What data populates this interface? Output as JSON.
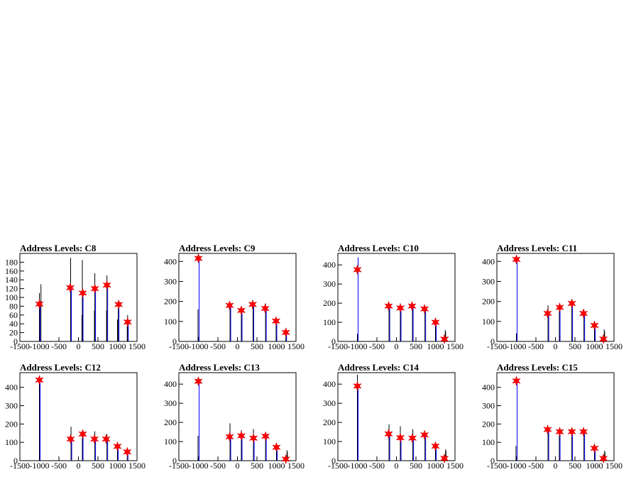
{
  "chart_data": [
    {
      "type": "line",
      "title": "Address Levels: C8",
      "xlim": [
        -1500,
        1500
      ],
      "ylim": [
        0,
        200
      ],
      "xticks": [
        "-1500",
        "-1000",
        "-500",
        "0",
        "500",
        "1000",
        "1500"
      ],
      "yticks": [
        [
          "0",
          "0"
        ],
        [
          "20",
          "20"
        ],
        [
          "40",
          "40"
        ],
        [
          "60",
          "60"
        ],
        [
          "80",
          "80"
        ],
        [
          "100",
          "100"
        ],
        [
          "120",
          "120"
        ],
        [
          "140",
          "140"
        ],
        [
          "160",
          "160"
        ],
        [
          "180",
          "180"
        ]
      ],
      "black_spikes": [
        [
          -1000,
          110
        ],
        [
          -960,
          130
        ],
        [
          -200,
          190
        ],
        [
          -190,
          70
        ],
        [
          100,
          185
        ],
        [
          90,
          60
        ],
        [
          420,
          155
        ],
        [
          410,
          70
        ],
        [
          730,
          150
        ],
        [
          720,
          70
        ],
        [
          1020,
          75
        ],
        [
          1000,
          50
        ],
        [
          1260,
          60
        ],
        [
          1250,
          35
        ]
      ],
      "blue_spikes": [
        [
          -1000,
          80
        ],
        [
          -200,
          120
        ],
        [
          100,
          105
        ],
        [
          420,
          115
        ],
        [
          730,
          125
        ],
        [
          1020,
          80
        ],
        [
          1260,
          40
        ]
      ],
      "peaks": [
        [
          -1000,
          85
        ],
        [
          -210,
          122
        ],
        [
          110,
          110
        ],
        [
          420,
          120
        ],
        [
          730,
          128
        ],
        [
          1030,
          84
        ],
        [
          1260,
          44
        ]
      ]
    },
    {
      "type": "line",
      "title": "Address Levels: C9",
      "xlim": [
        -1500,
        1500
      ],
      "ylim": [
        0,
        440
      ],
      "xticks": [
        "-1500",
        "-1000",
        "-500",
        "0",
        "500",
        "1000",
        "1500"
      ],
      "yticks": [
        [
          "0",
          "0"
        ],
        [
          "100",
          "100"
        ],
        [
          "200",
          "200"
        ],
        [
          "300",
          "300"
        ],
        [
          "400",
          "400"
        ]
      ],
      "black_spikes": [
        [
          -1010,
          160
        ],
        [
          -190,
          190
        ],
        [
          100,
          170
        ],
        [
          400,
          185
        ],
        [
          720,
          190
        ],
        [
          990,
          100
        ],
        [
          1240,
          50
        ],
        [
          1250,
          40
        ]
      ],
      "blue_spikes": [
        [
          -1000,
          420
        ],
        [
          -190,
          175
        ],
        [
          100,
          155
        ],
        [
          400,
          185
        ],
        [
          720,
          160
        ],
        [
          990,
          105
        ],
        [
          1240,
          45
        ]
      ],
      "peaks": [
        [
          -1000,
          415
        ],
        [
          -200,
          180
        ],
        [
          100,
          155
        ],
        [
          390,
          185
        ],
        [
          710,
          165
        ],
        [
          990,
          102
        ],
        [
          1240,
          45
        ]
      ]
    },
    {
      "type": "line",
      "title": "Address Levels: C10",
      "xlim": [
        -1500,
        1500
      ],
      "ylim": [
        0,
        460
      ],
      "xticks": [
        "-1500",
        "-1000",
        "-500",
        "0",
        "500",
        "1000",
        "1500"
      ],
      "yticks": [
        [
          "0",
          "0"
        ],
        [
          "100",
          "100"
        ],
        [
          "200",
          "200"
        ],
        [
          "300",
          "300"
        ],
        [
          "400",
          "400"
        ]
      ],
      "black_spikes": [
        [
          -1000,
          40
        ],
        [
          -190,
          200
        ],
        [
          100,
          190
        ],
        [
          410,
          195
        ],
        [
          730,
          180
        ],
        [
          1000,
          110
        ],
        [
          1250,
          60
        ],
        [
          1260,
          50
        ]
      ],
      "blue_spikes": [
        [
          -1000,
          440
        ],
        [
          -190,
          185
        ],
        [
          100,
          175
        ],
        [
          410,
          180
        ],
        [
          730,
          170
        ],
        [
          1000,
          100
        ],
        [
          1230,
          15
        ]
      ],
      "peaks": [
        [
          -1000,
          375
        ],
        [
          -200,
          185
        ],
        [
          100,
          175
        ],
        [
          400,
          185
        ],
        [
          720,
          170
        ],
        [
          1000,
          100
        ],
        [
          1230,
          12
        ]
      ]
    },
    {
      "type": "line",
      "title": "Address Levels: C11",
      "xlim": [
        -1500,
        1500
      ],
      "ylim": [
        0,
        440
      ],
      "xticks": [
        "-1500",
        "-1000",
        "-500",
        "0",
        "500",
        "1000",
        "1500"
      ],
      "yticks": [
        [
          "0",
          "0"
        ],
        [
          "100",
          "100"
        ],
        [
          "200",
          "200"
        ],
        [
          "300",
          "300"
        ],
        [
          "400",
          "400"
        ]
      ],
      "black_spikes": [
        [
          -1000,
          40
        ],
        [
          -190,
          180
        ],
        [
          100,
          180
        ],
        [
          420,
          200
        ],
        [
          730,
          160
        ],
        [
          1000,
          90
        ],
        [
          1250,
          60
        ],
        [
          1260,
          50
        ]
      ],
      "blue_spikes": [
        [
          -1000,
          410
        ],
        [
          -190,
          140
        ],
        [
          100,
          170
        ],
        [
          420,
          190
        ],
        [
          730,
          140
        ],
        [
          1000,
          80
        ],
        [
          1230,
          15
        ]
      ],
      "peaks": [
        [
          -1000,
          410
        ],
        [
          -200,
          140
        ],
        [
          110,
          170
        ],
        [
          420,
          190
        ],
        [
          720,
          140
        ],
        [
          1000,
          80
        ],
        [
          1230,
          12
        ]
      ]
    },
    {
      "type": "line",
      "title": "Address Levels: C12",
      "xlim": [
        -1500,
        1500
      ],
      "ylim": [
        0,
        480
      ],
      "xticks": [
        "-1500",
        "-1000",
        "-500",
        "0",
        "500",
        "1000",
        "1500"
      ],
      "yticks": [
        [
          "0",
          "0"
        ],
        [
          "100",
          "100"
        ],
        [
          "200",
          "200"
        ],
        [
          "300",
          "300"
        ],
        [
          "400",
          "400"
        ]
      ],
      "black_spikes": [
        [
          -1000,
          430
        ],
        [
          -190,
          185
        ],
        [
          100,
          160
        ],
        [
          420,
          160
        ],
        [
          730,
          145
        ],
        [
          1000,
          90
        ],
        [
          1250,
          55
        ]
      ],
      "blue_spikes": [
        [
          -1000,
          445
        ],
        [
          -190,
          120
        ],
        [
          100,
          140
        ],
        [
          420,
          120
        ],
        [
          730,
          120
        ],
        [
          1000,
          75
        ],
        [
          1250,
          45
        ]
      ],
      "peaks": [
        [
          -1000,
          440
        ],
        [
          -200,
          118
        ],
        [
          110,
          145
        ],
        [
          410,
          118
        ],
        [
          710,
          118
        ],
        [
          1000,
          78
        ],
        [
          1250,
          48
        ]
      ]
    },
    {
      "type": "line",
      "title": "Address Levels: C13",
      "xlim": [
        -1500,
        1500
      ],
      "ylim": [
        0,
        460
      ],
      "xticks": [
        "-1500",
        "-1000",
        "-500",
        "0",
        "500",
        "1000",
        "1500"
      ],
      "yticks": [
        [
          "0",
          "0"
        ],
        [
          "100",
          "100"
        ],
        [
          "200",
          "200"
        ],
        [
          "300",
          "300"
        ],
        [
          "400",
          "400"
        ]
      ],
      "black_spikes": [
        [
          -1010,
          130
        ],
        [
          -190,
          195
        ],
        [
          100,
          160
        ],
        [
          410,
          165
        ],
        [
          720,
          140
        ],
        [
          1000,
          80
        ],
        [
          1270,
          55
        ],
        [
          1280,
          45
        ]
      ],
      "blue_spikes": [
        [
          -1000,
          420
        ],
        [
          -190,
          125
        ],
        [
          100,
          130
        ],
        [
          410,
          120
        ],
        [
          720,
          130
        ],
        [
          1000,
          70
        ],
        [
          1240,
          10
        ]
      ],
      "peaks": [
        [
          -1000,
          415
        ],
        [
          -200,
          125
        ],
        [
          100,
          130
        ],
        [
          410,
          118
        ],
        [
          720,
          128
        ],
        [
          1000,
          70
        ],
        [
          1240,
          8
        ]
      ]
    },
    {
      "type": "line",
      "title": "Address Levels: C14",
      "xlim": [
        -1500,
        1500
      ],
      "ylim": [
        0,
        460
      ],
      "xticks": [
        "-1500",
        "-1000",
        "-500",
        "0",
        "500",
        "1000",
        "1500"
      ],
      "yticks": [
        [
          "0",
          "0"
        ],
        [
          "100",
          "100"
        ],
        [
          "200",
          "200"
        ],
        [
          "300",
          "300"
        ],
        [
          "400",
          "400"
        ]
      ],
      "black_spikes": [
        [
          -1000,
          450
        ],
        [
          -190,
          190
        ],
        [
          100,
          180
        ],
        [
          420,
          165
        ],
        [
          730,
          150
        ],
        [
          1000,
          90
        ],
        [
          1260,
          60
        ],
        [
          1270,
          50
        ]
      ],
      "blue_spikes": [
        [
          -1000,
          390
        ],
        [
          -190,
          140
        ],
        [
          100,
          120
        ],
        [
          420,
          125
        ],
        [
          730,
          135
        ],
        [
          1000,
          75
        ],
        [
          1230,
          15
        ]
      ],
      "peaks": [
        [
          -1000,
          390
        ],
        [
          -200,
          140
        ],
        [
          100,
          120
        ],
        [
          410,
          118
        ],
        [
          720,
          135
        ],
        [
          1000,
          76
        ],
        [
          1230,
          12
        ]
      ]
    },
    {
      "type": "line",
      "title": "Address Levels: C15",
      "xlim": [
        -1500,
        1500
      ],
      "ylim": [
        0,
        480
      ],
      "xticks": [
        "-1500",
        "-1000",
        "-500",
        "0",
        "500",
        "1000",
        "1500"
      ],
      "yticks": [
        [
          "0",
          "0"
        ],
        [
          "100",
          "100"
        ],
        [
          "200",
          "200"
        ],
        [
          "300",
          "300"
        ],
        [
          "400",
          "400"
        ]
      ],
      "black_spikes": [
        [
          -1010,
          80
        ],
        [
          -190,
          180
        ],
        [
          100,
          170
        ],
        [
          420,
          160
        ],
        [
          730,
          165
        ],
        [
          1000,
          75
        ],
        [
          1260,
          55
        ],
        [
          1270,
          45
        ]
      ],
      "blue_spikes": [
        [
          -1000,
          440
        ],
        [
          -190,
          170
        ],
        [
          100,
          160
        ],
        [
          420,
          155
        ],
        [
          730,
          160
        ],
        [
          1000,
          65
        ],
        [
          1230,
          15
        ]
      ],
      "peaks": [
        [
          -1000,
          435
        ],
        [
          -200,
          170
        ],
        [
          110,
          158
        ],
        [
          420,
          158
        ],
        [
          720,
          158
        ],
        [
          1000,
          68
        ],
        [
          1230,
          12
        ]
      ]
    }
  ],
  "colors": {
    "black_series": "#000000",
    "blue_series": "#0000ff",
    "peak_marker": "#ff0000",
    "frame": "#000000"
  }
}
